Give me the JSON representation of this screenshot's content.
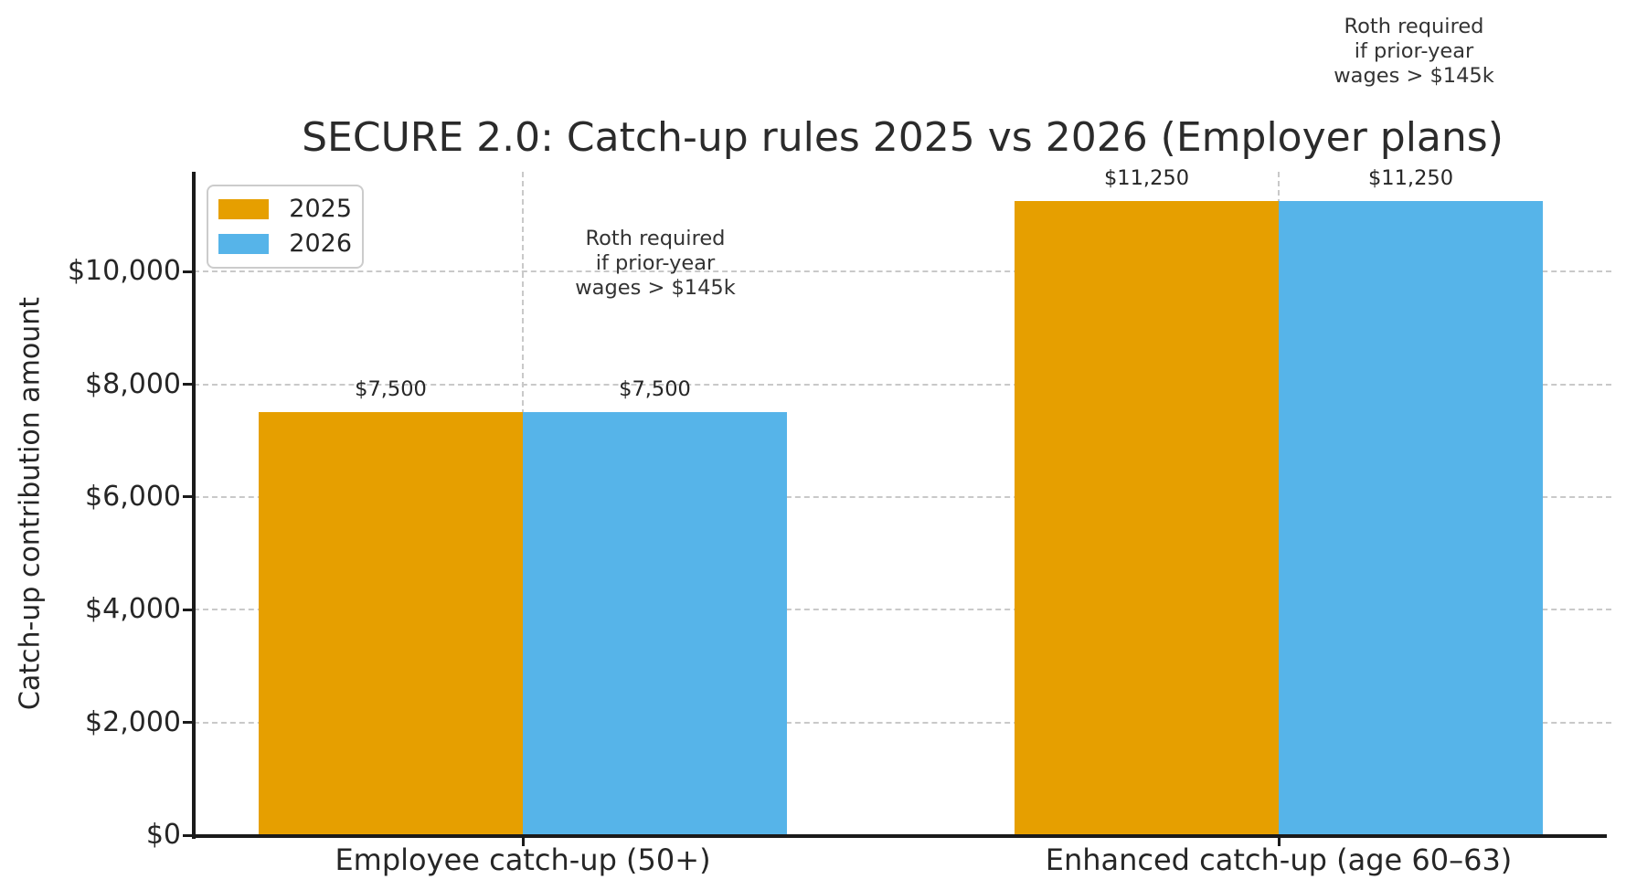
{
  "chart_data": {
    "type": "bar",
    "title": "SECURE 2.0: Catch-up rules 2025 vs 2026 (Employer plans)",
    "ylabel": "Catch-up contribution amount",
    "xlabel": "",
    "categories": [
      "Employee catch-up (50+)",
      "Enhanced catch-up (age 60–63)"
    ],
    "series": [
      {
        "name": "2025",
        "color": "#E69F00",
        "values": [
          7500,
          11250
        ],
        "value_labels": [
          "$7,500",
          "$11,250"
        ]
      },
      {
        "name": "2026",
        "color": "#56B4E9",
        "values": [
          7500,
          11250
        ],
        "value_labels": [
          "$7,500",
          "$11,250"
        ]
      }
    ],
    "yticks": [
      0,
      2000,
      4000,
      6000,
      8000,
      10000
    ],
    "ytick_labels": [
      "$0",
      "$2,000",
      "$4,000",
      "$6,000",
      "$8,000",
      "$10,000"
    ],
    "ylim": [
      0,
      11770
    ],
    "grid": "dashed, horizontal at y-ticks and vertical at category centers, drawn behind bars",
    "legend_position": "upper left",
    "annotations": [
      {
        "text": "Roth required\nif prior-year\nwages > $145k",
        "target": "2026 bar, Employee catch-up (50+)"
      },
      {
        "text": "Roth required\nif prior-year\nwages > $145k",
        "target": "2026 bar, Enhanced catch-up (age 60–63)"
      }
    ],
    "colors": {
      "text": "#262626",
      "grid": "#c9c9c9",
      "spine": "#1a1a1a",
      "series_2025": "#E69F00",
      "series_2026": "#56B4E9"
    }
  }
}
